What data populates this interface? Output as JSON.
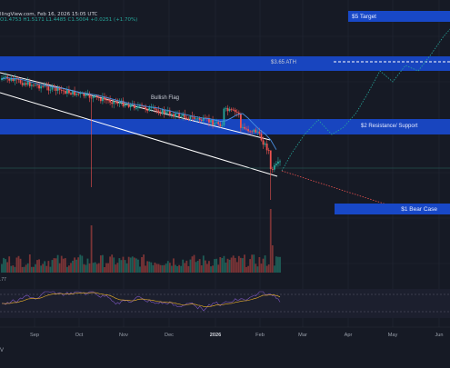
{
  "header": {
    "source_text": "llingView.com, Feb 16, 2026 15:05 UTC",
    "ohlc_text": "O1.4753 H1.5171 L1.4485 C1.5004 +0.0251 (+1.70%)"
  },
  "indicator_value": ".77",
  "brand_text": "V",
  "chart_data": {
    "type": "candlestick",
    "title": "",
    "x_axis": {
      "ticks": [
        "Sep",
        "Oct",
        "Nov",
        "Dec",
        "2026",
        "Feb",
        "Mar",
        "Apr",
        "May",
        "Jun"
      ]
    },
    "grid": true,
    "levels": [
      {
        "label": "$5 Target",
        "price": 5.0
      },
      {
        "label": "$3.65 ATH",
        "price": 3.65
      },
      {
        "label": "$2 Resistance/ Support",
        "price": 2.0
      },
      {
        "label": "$1 Bear Case",
        "price": 1.0
      }
    ],
    "pattern_label": "Bullish Flag",
    "last_close": 1.5004,
    "colors": {
      "up": "#26a69a",
      "down": "#ef5350",
      "zone": "#1848c7",
      "channel": "#ffffff",
      "ma": "#4a90e2",
      "bullish_path": "#26a69a",
      "bearish_path": "#ef5350"
    }
  }
}
